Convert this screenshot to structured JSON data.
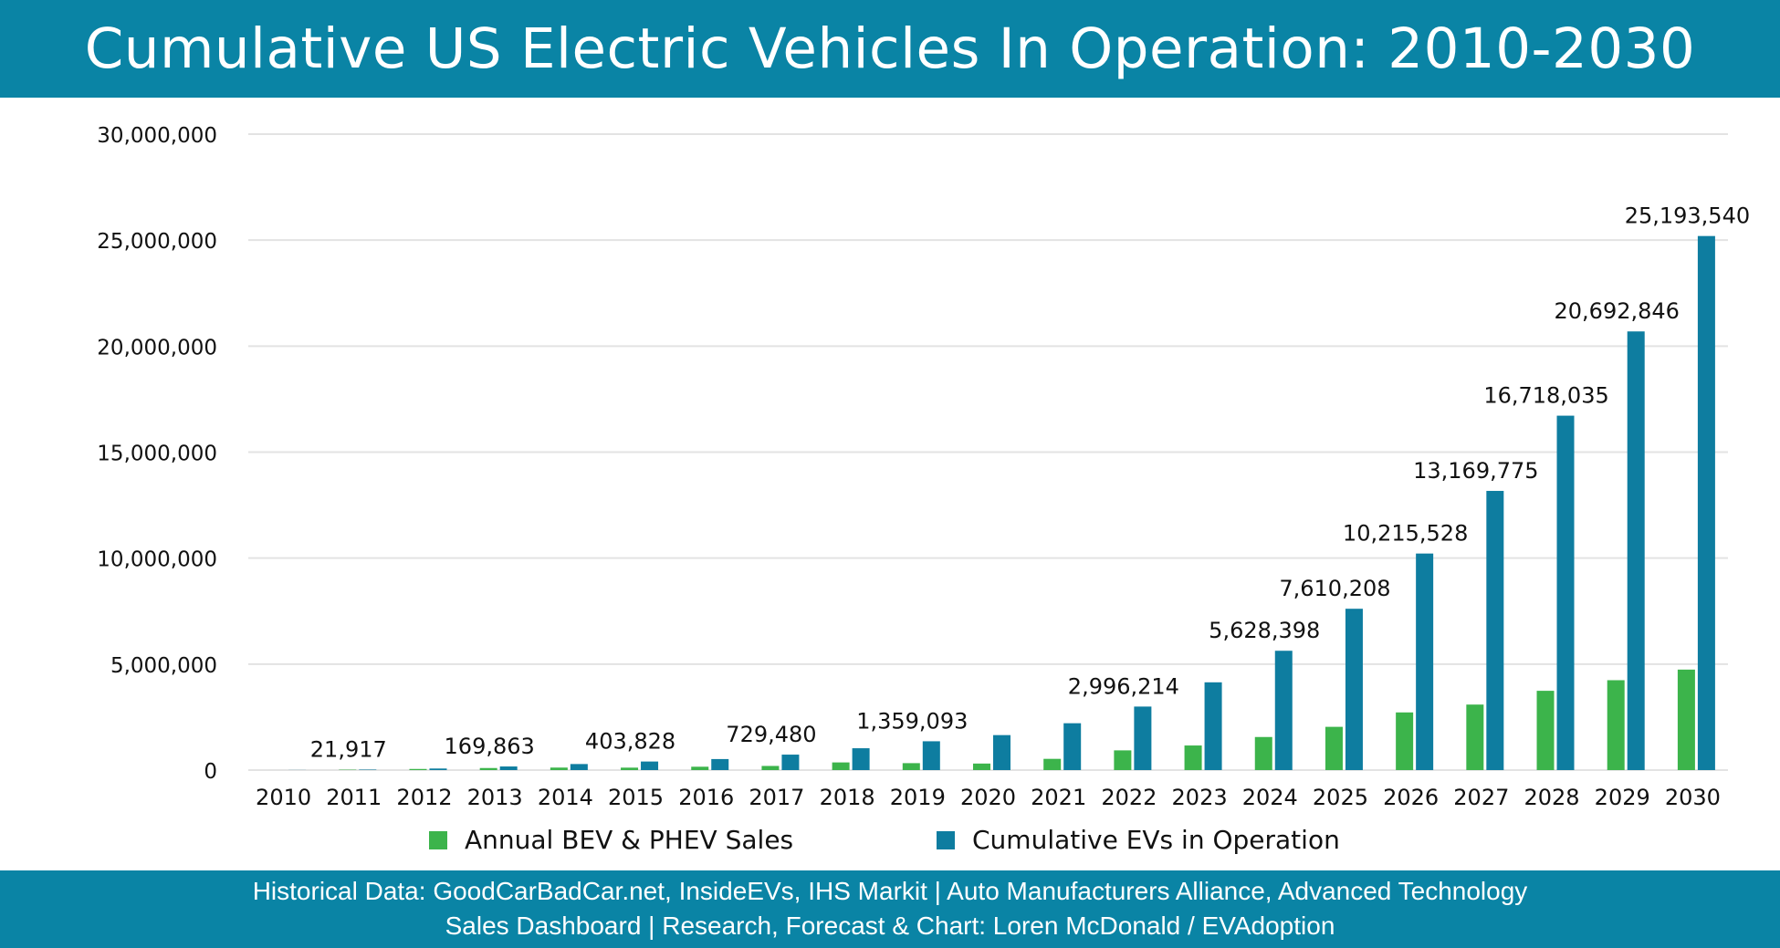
{
  "header": {
    "title": "Cumulative US Electric Vehicles In Operation: 2010-2030"
  },
  "footer": {
    "line1": "Historical Data: GoodCarBadCar.net, InsideEVs, IHS Markit | Auto Manufacturers Alliance, Advanced Technology",
    "line2": "Sales Dashboard | Research, Forecast & Chart: Loren McDonald / EVAdoption"
  },
  "colors": {
    "header": "#0a84a5",
    "annual": "#3cb44b",
    "cumulative": "#0e7da0",
    "grid": "#e3e3e3"
  },
  "chart_data": {
    "type": "bar",
    "title": "Cumulative US Electric Vehicles In Operation: 2010-2030",
    "xlabel": "",
    "ylabel": "",
    "ylim": [
      0,
      30000000
    ],
    "yticks": [
      0,
      5000000,
      10000000,
      15000000,
      20000000,
      25000000,
      30000000
    ],
    "ytick_labels": [
      "0",
      "5,000,000",
      "10,000,000",
      "15,000,000",
      "20,000,000",
      "25,000,000",
      "30,000,000"
    ],
    "grid": true,
    "legend_position": "bottom",
    "categories": [
      "2010",
      "2011",
      "2012",
      "2013",
      "2014",
      "2015",
      "2016",
      "2017",
      "2018",
      "2019",
      "2020",
      "2021",
      "2022",
      "2023",
      "2024",
      "2025",
      "2026",
      "2027",
      "2028",
      "2029",
      "2030"
    ],
    "series": [
      {
        "name": "Annual BEV & PHEV Sales",
        "values": [
          300,
          17700,
          53000,
          97000,
          118000,
          115000,
          158000,
          195000,
          361000,
          327000,
          308000,
          530000,
          930000,
          1160000,
          1560000,
          2040000,
          2720000,
          3090000,
          3740000,
          4240000,
          4740000
        ]
      },
      {
        "name": "Cumulative EVs in Operation",
        "values": [
          4200,
          21917,
          74000,
          169863,
          285000,
          403828,
          520000,
          729480,
          1030000,
          1359093,
          1650000,
          2210000,
          2996214,
          4140000,
          5628398,
          7610208,
          10215528,
          13169775,
          16718035,
          20692846,
          25193540
        ]
      }
    ],
    "data_labels": [
      {
        "category": "2011",
        "series": "Cumulative EVs in Operation",
        "text": "21,917"
      },
      {
        "category": "2013",
        "series": "Cumulative EVs in Operation",
        "text": "169,863"
      },
      {
        "category": "2015",
        "series": "Cumulative EVs in Operation",
        "text": "403,828"
      },
      {
        "category": "2017",
        "series": "Cumulative EVs in Operation",
        "text": "729,480"
      },
      {
        "category": "2019",
        "series": "Cumulative EVs in Operation",
        "text": "1,359,093"
      },
      {
        "category": "2022",
        "series": "Cumulative EVs in Operation",
        "text": "2,996,214"
      },
      {
        "category": "2024",
        "series": "Cumulative EVs in Operation",
        "text": "5,628,398"
      },
      {
        "category": "2025",
        "series": "Cumulative EVs in Operation",
        "text": "7,610,208"
      },
      {
        "category": "2026",
        "series": "Cumulative EVs in Operation",
        "text": "10,215,528"
      },
      {
        "category": "2027",
        "series": "Cumulative EVs in Operation",
        "text": "13,169,775"
      },
      {
        "category": "2028",
        "series": "Cumulative EVs in Operation",
        "text": "16,718,035"
      },
      {
        "category": "2029",
        "series": "Cumulative EVs in Operation",
        "text": "20,692,846"
      },
      {
        "category": "2030",
        "series": "Cumulative EVs in Operation",
        "text": "25,193,540"
      }
    ]
  }
}
